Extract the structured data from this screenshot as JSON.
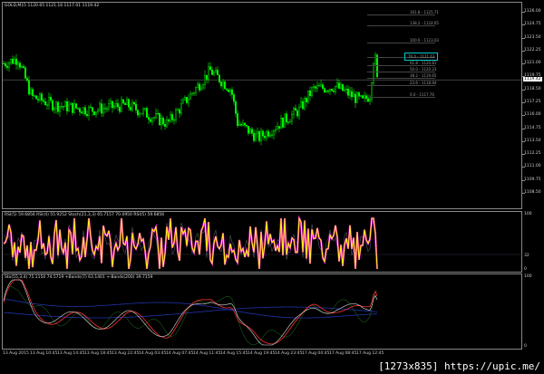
{
  "main": {
    "title": "GOLD,M15  1120.65 1121.16 1117.01 1119.42",
    "current_price": "1119.42",
    "price_axis": [
      "1126.00",
      "1124.75",
      "1123.50",
      "1122.25",
      "1121.00",
      "1119.75",
      "1118.50",
      "1117.25",
      "1116.00",
      "1114.75",
      "1113.50",
      "1112.25",
      "1111.00",
      "1109.75",
      "1108.50"
    ],
    "fibo_levels": [
      {
        "label": "161.8 - 1125.71",
        "price": 1125.71
      },
      {
        "label": "138.2 - 1124.65",
        "price": 1124.65
      },
      {
        "label": "100.0 - 1123.03",
        "price": 1123.03
      },
      {
        "label": "76.4 - 1121.63",
        "price": 1121.63,
        "highlighted": true
      },
      {
        "label": "61.8 - 1120.81",
        "price": 1120.81
      },
      {
        "label": "50.0 - 1120.23",
        "price": 1120.23
      },
      {
        "label": "38.2 - 1119.65",
        "price": 1119.65
      },
      {
        "label": "23.6 - 1118.94",
        "price": 1118.94
      },
      {
        "label": "0.0 - 1117.76",
        "price": 1117.76
      }
    ],
    "candle_color": "#00ff00",
    "highlight_color": "#00c8c8"
  },
  "rsi_panel": {
    "title": "RSI(5) 59.6856  RSI(4) 55.9252  Stoch(21,3,3) 65.7157 70.0950  RSI(5) 59.6856",
    "axis": [
      "100",
      "32",
      "0"
    ],
    "line_color": "#ffff00",
    "shade_color": "#ff00ff"
  },
  "stoch_panel": {
    "title": "Sto(55,3,4) 75.1150 74.5719  +Bands(7) 63.1401  +-Bands(200) 39.7159",
    "axis": [
      "100",
      "0"
    ]
  },
  "time_axis": [
    "13 Aug 2015",
    "13 Aug 10:45",
    "13 Aug 14:45",
    "13 Aug 18:45",
    "13 Aug 22:45",
    "14 Aug 03:45",
    "14 Aug 07:45",
    "14 Aug 11:45",
    "14 Aug 15:45",
    "14 Aug 19:45",
    "14 Aug 23:45",
    "17 Aug 04:45",
    "17 Aug 08:45",
    "17 Aug 12:45"
  ],
  "watermark": "[1273x835] https://upic.me/"
}
